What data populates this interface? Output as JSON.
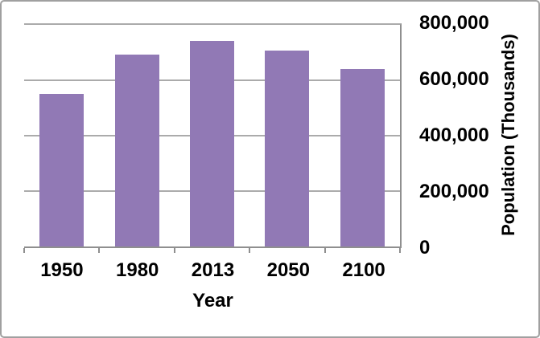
{
  "chart_data": {
    "type": "bar",
    "title": "",
    "xlabel": "Year",
    "ylabel": "Population (Thousands)",
    "categories": [
      "1950",
      "1980",
      "2013",
      "2050",
      "2100"
    ],
    "values": [
      550000,
      694000,
      742000,
      708000,
      640000
    ],
    "ylim": [
      0,
      800000
    ],
    "ytick_labels": [
      "800,000",
      "600,000",
      "400,000",
      "200,000",
      "0"
    ],
    "ytick_values": [
      800000,
      600000,
      400000,
      200000,
      0
    ],
    "grid": "horizontal",
    "legend_position": "none",
    "yaxis_side": "right",
    "colors": {
      "bar": "#9179B5",
      "gridline": "#ABABAB",
      "axis": "#8F8F8F",
      "frame_border": "#A0A0A0",
      "background": "#FFFFFF",
      "text": "#000000"
    }
  }
}
